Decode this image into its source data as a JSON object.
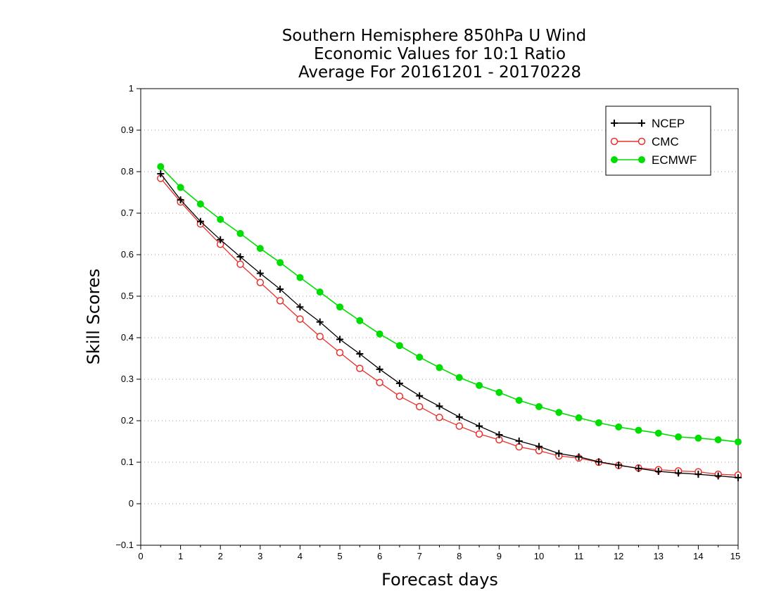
{
  "chart_data": {
    "type": "line",
    "title_lines": [
      "Southern Hemisphere 850hPa U Wind",
      "Economic Values for 10:1 Ratio",
      "Average For 20161201 - 20170228"
    ],
    "xlabel": "Forecast days",
    "ylabel": "Skill Scores",
    "xlim": [
      0,
      15
    ],
    "ylim": [
      -0.1,
      1
    ],
    "x_ticks": [
      "0",
      "1",
      "2",
      "3",
      "4",
      "5",
      "6",
      "7",
      "8",
      "9",
      "10",
      "11",
      "12",
      "13",
      "14",
      "15"
    ],
    "y_ticks": [
      "−0.1",
      "0",
      "0.1",
      "0.2",
      "0.3",
      "0.4",
      "0.5",
      "0.6",
      "0.7",
      "0.8",
      "0.9",
      "1"
    ],
    "y_tick_values": [
      -0.1,
      0,
      0.1,
      0.2,
      0.3,
      0.4,
      0.5,
      0.6,
      0.7,
      0.8,
      0.9,
      1.0
    ],
    "grid": "horizontal-dotted",
    "legend_position": "top-right",
    "x": [
      0.5,
      1,
      1.5,
      2,
      2.5,
      3,
      3.5,
      4,
      4.5,
      5,
      5.5,
      6,
      6.5,
      7,
      7.5,
      8,
      8.5,
      9,
      9.5,
      10,
      10.5,
      11,
      11.5,
      12,
      12.5,
      13,
      13.5,
      14,
      14.5,
      15
    ],
    "series": [
      {
        "name": "NCEP",
        "color": "#000000",
        "marker": "plus",
        "values": [
          0.795,
          0.732,
          0.68,
          0.636,
          0.595,
          0.555,
          0.517,
          0.474,
          0.438,
          0.396,
          0.361,
          0.324,
          0.29,
          0.26,
          0.235,
          0.209,
          0.187,
          0.166,
          0.151,
          0.138,
          0.121,
          0.113,
          0.101,
          0.093,
          0.085,
          0.078,
          0.074,
          0.071,
          0.067,
          0.063
        ]
      },
      {
        "name": "CMC",
        "color": "#e8302a",
        "marker": "open-circle",
        "values": [
          0.784,
          0.727,
          0.674,
          0.625,
          0.577,
          0.533,
          0.489,
          0.445,
          0.403,
          0.364,
          0.326,
          0.292,
          0.259,
          0.234,
          0.208,
          0.187,
          0.168,
          0.154,
          0.137,
          0.128,
          0.115,
          0.11,
          0.1,
          0.092,
          0.086,
          0.082,
          0.079,
          0.077,
          0.071,
          0.069
        ]
      },
      {
        "name": "ECMWF",
        "color": "#00dd00",
        "marker": "filled-circle",
        "values": [
          0.812,
          0.762,
          0.722,
          0.685,
          0.651,
          0.615,
          0.581,
          0.545,
          0.51,
          0.474,
          0.441,
          0.409,
          0.381,
          0.353,
          0.328,
          0.304,
          0.285,
          0.268,
          0.249,
          0.234,
          0.22,
          0.207,
          0.195,
          0.185,
          0.177,
          0.17,
          0.161,
          0.158,
          0.154,
          0.149
        ]
      }
    ]
  }
}
